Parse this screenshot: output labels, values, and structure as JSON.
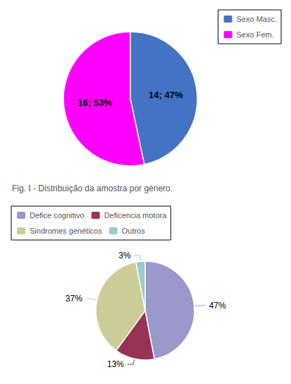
{
  "chart_data": [
    {
      "type": "pie",
      "title": "Fig. I - Distribuição da amostra por género.",
      "categories": [
        "Sexo Masc.",
        "Sexo Fem."
      ],
      "values": [
        14,
        16
      ],
      "value_labels": [
        "14; 47%",
        "16; 53%"
      ],
      "colors": [
        "#4472C4",
        "#FF00FF"
      ],
      "data_labels": true,
      "legend": "top-right"
    },
    {
      "type": "pie",
      "categories": [
        "Defice cognitivo",
        "Deficencia motora",
        "Sindromes genéticos",
        "Outros"
      ],
      "values": [
        47,
        13,
        37,
        3
      ],
      "value_labels": [
        "47%",
        "13%",
        "37%",
        "3%"
      ],
      "colors": [
        "#9999CC",
        "#993355",
        "#CCCC99",
        "#99CCCC"
      ],
      "data_labels": true,
      "legend": "top-left"
    }
  ]
}
